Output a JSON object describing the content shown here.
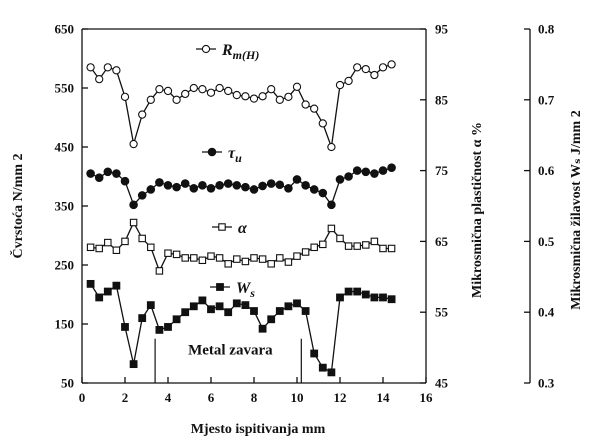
{
  "chart_data": {
    "type": "line",
    "x": [
      0.4,
      0.8,
      1.2,
      1.6,
      2.0,
      2.4,
      2.8,
      3.2,
      3.6,
      4.0,
      4.4,
      4.8,
      5.2,
      5.6,
      6.0,
      6.4,
      6.8,
      7.2,
      7.6,
      8.0,
      8.4,
      8.8,
      9.2,
      9.6,
      10.0,
      10.4,
      10.8,
      11.2,
      11.6,
      12.0,
      12.4,
      12.8,
      13.2,
      13.6,
      14.0,
      14.4
    ],
    "xlabel": "Mjesto ispitivanja  mm",
    "xlim": [
      0,
      16
    ],
    "xticks": [
      "0",
      "2",
      "4",
      "6",
      "8",
      "10",
      "12",
      "14",
      "16"
    ],
    "axes": [
      {
        "id": "left",
        "label": "Čvrstoća  N/mm 2",
        "ylim": [
          50,
          650
        ],
        "ticks": [
          "50",
          "150",
          "250",
          "350",
          "450",
          "550",
          "650"
        ]
      },
      {
        "id": "right1",
        "label": "Mikrosmična plastičnost  α  %",
        "ylim": [
          45,
          95
        ],
        "ticks": [
          "45",
          "55",
          "65",
          "75",
          "85",
          "95"
        ]
      },
      {
        "id": "right2",
        "label": "Mikrosmična žilavost  Wₛ  J/mm 2",
        "ylim": [
          0.3,
          0.8
        ],
        "ticks": [
          "0.3",
          "0.4",
          "0.5",
          "0.6",
          "0.7",
          "0.8"
        ]
      }
    ],
    "series": [
      {
        "name": "R m(H)",
        "axis": "left",
        "marker": "open-circle",
        "values": [
          585,
          565,
          585,
          580,
          535,
          455,
          505,
          530,
          548,
          545,
          530,
          540,
          550,
          548,
          542,
          550,
          545,
          538,
          536,
          532,
          536,
          548,
          530,
          535,
          552,
          522,
          515,
          490,
          450,
          555,
          562,
          585,
          582,
          572,
          585,
          590
        ]
      },
      {
        "name": "τu",
        "axis": "left",
        "marker": "filled-circle",
        "values": [
          405,
          398,
          408,
          405,
          392,
          352,
          368,
          378,
          390,
          385,
          382,
          388,
          380,
          385,
          380,
          385,
          388,
          385,
          382,
          378,
          384,
          388,
          386,
          380,
          395,
          385,
          378,
          372,
          352,
          395,
          400,
          410,
          408,
          405,
          410,
          415
        ]
      },
      {
        "name": "α",
        "axis": "left",
        "marker": "open-square",
        "values": [
          280,
          278,
          288,
          275,
          290,
          322,
          295,
          280,
          240,
          270,
          268,
          262,
          262,
          258,
          265,
          262,
          252,
          260,
          256,
          262,
          260,
          252,
          262,
          255,
          265,
          272,
          280,
          285,
          312,
          295,
          282,
          282,
          284,
          290,
          278,
          278
        ]
      },
      {
        "name": "Ws",
        "axis": "left",
        "marker": "filled-square",
        "values": [
          218,
          195,
          205,
          215,
          145,
          82,
          160,
          182,
          140,
          145,
          158,
          170,
          180,
          190,
          175,
          180,
          170,
          185,
          182,
          172,
          142,
          158,
          172,
          180,
          185,
          172,
          100,
          76,
          68,
          195,
          205,
          205,
          200,
          195,
          195,
          192
        ]
      }
    ],
    "legend": [
      {
        "marker": "open-circle",
        "sym": "R",
        "sub": "m(H)"
      },
      {
        "marker": "filled-circle",
        "sym": "τ",
        "sub": "u"
      },
      {
        "marker": "open-square",
        "sym": "α",
        "sub": ""
      },
      {
        "marker": "filled-square",
        "sym": "W",
        "sub": "s"
      }
    ],
    "annotations": [
      {
        "text": "Metal zavara",
        "x": 6.9,
        "y": 98
      },
      {
        "text": "",
        "type": "vline",
        "x": 3.4,
        "y_range": [
          50,
          125
        ]
      },
      {
        "text": "",
        "type": "vline",
        "x": 10.2,
        "y_range": [
          50,
          125
        ]
      }
    ],
    "grid": false
  }
}
